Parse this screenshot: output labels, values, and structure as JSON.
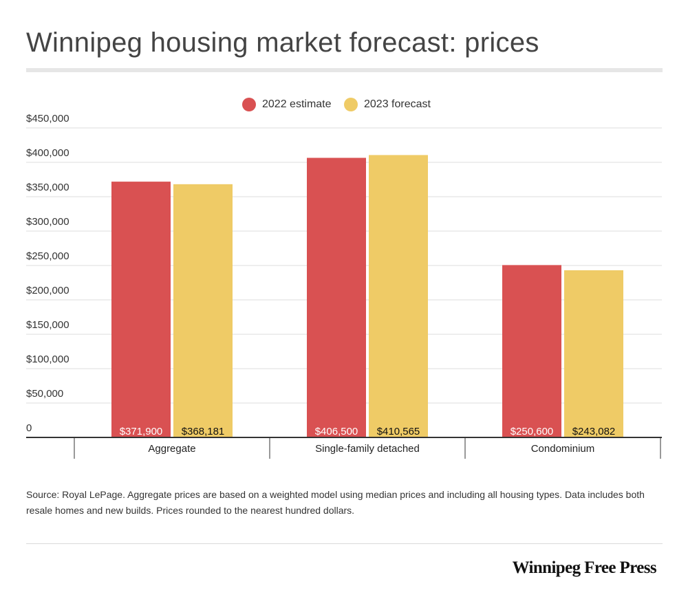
{
  "title": "Winnipeg housing market forecast: prices",
  "legend": [
    {
      "label": "2022 estimate",
      "color": "#d95152"
    },
    {
      "label": "2023 forecast",
      "color": "#efcb66"
    }
  ],
  "chart_data": {
    "type": "bar",
    "title": "Winnipeg housing market forecast: prices",
    "xlabel": "",
    "ylabel": "",
    "categories": [
      "Aggregate",
      "Single-family detached",
      "Condominium"
    ],
    "series": [
      {
        "name": "2022 estimate",
        "color": "#d95152",
        "values": [
          371900,
          406500,
          250600
        ],
        "labels": [
          "$371,900",
          "$406,500",
          "$250,600"
        ],
        "label_color": "#ffffff"
      },
      {
        "name": "2023 forecast",
        "color": "#efcb66",
        "values": [
          368181,
          410565,
          243082
        ],
        "labels": [
          "$368,181",
          "$410,565",
          "$243,082"
        ],
        "label_color": "#111111"
      }
    ],
    "ylim": [
      0,
      450000
    ],
    "yticks": [
      0,
      50000,
      100000,
      150000,
      200000,
      250000,
      300000,
      350000,
      400000,
      450000
    ],
    "ytick_labels": [
      "0",
      "$50,000",
      "$100,000",
      "$150,000",
      "$200,000",
      "$250,000",
      "$300,000",
      "$350,000",
      "$400,000",
      "$450,000"
    ],
    "grid": true,
    "legend_position": "top-center"
  },
  "source": "Source: Royal LePage. Aggregate prices are based on a weighted model using median prices and including all housing types. Data includes both resale homes and new builds. Prices rounded to the nearest hundred dollars.",
  "brand": "Winnipeg Free Press"
}
